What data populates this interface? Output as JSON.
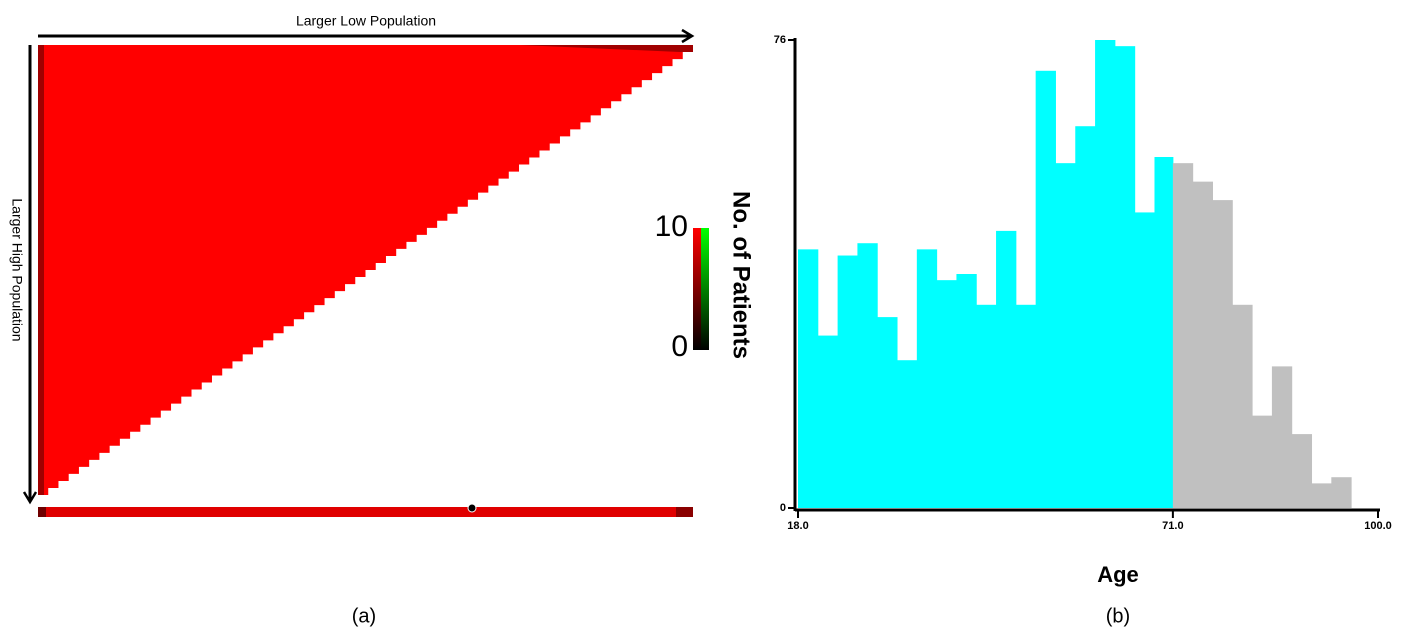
{
  "panel_a": {
    "top_label": "Larger Low Population",
    "side_label": "Larger High Population",
    "colorbar": {
      "label": "No. of Patients",
      "ticks": [
        0,
        10
      ],
      "lim": [
        0,
        10
      ]
    },
    "caption": "(a)"
  },
  "chart_data": {
    "type": "histogram",
    "xlabel": "Age",
    "caption": "(b)",
    "bins": [
      18.0,
      20.8,
      23.6,
      26.4,
      29.2,
      32.0,
      34.8,
      37.6,
      40.4,
      43.2,
      46.0,
      48.8,
      51.6,
      54.4,
      57.2,
      60.0,
      62.8,
      65.6,
      68.4,
      71.0,
      73.8,
      76.6,
      79.4,
      82.2,
      85.0,
      87.8,
      90.6,
      93.4,
      96.2
    ],
    "values": [
      42,
      28,
      41,
      43,
      31,
      24,
      42,
      37,
      38,
      33,
      45,
      33,
      71,
      56,
      62,
      76,
      75,
      48,
      57,
      56,
      53,
      50,
      33,
      15,
      23,
      12,
      4,
      5
    ],
    "colors": [
      "#00ffff",
      "#00ffff",
      "#00ffff",
      "#00ffff",
      "#00ffff",
      "#00ffff",
      "#00ffff",
      "#00ffff",
      "#00ffff",
      "#00ffff",
      "#00ffff",
      "#00ffff",
      "#00ffff",
      "#00ffff",
      "#00ffff",
      "#00ffff",
      "#00ffff",
      "#00ffff",
      "#00ffff",
      "#c0c0c0",
      "#c0c0c0",
      "#c0c0c0",
      "#c0c0c0",
      "#c0c0c0",
      "#c0c0c0",
      "#c0c0c0",
      "#c0c0c0",
      "#c0c0c0"
    ],
    "xlim": [
      18,
      100
    ],
    "ylim": [
      0,
      76
    ],
    "xticks": [
      {
        "value": 18,
        "label": "18.0"
      },
      {
        "value": 71,
        "label": "71.0"
      },
      {
        "value": 100,
        "label": "100.0"
      }
    ],
    "yticks": [
      0,
      76
    ]
  }
}
